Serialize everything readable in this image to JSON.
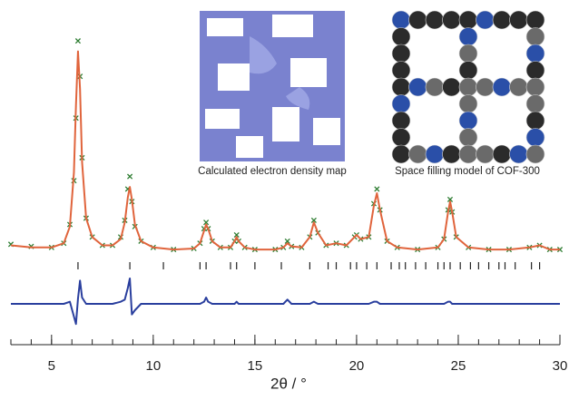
{
  "chart_data": {
    "type": "line",
    "x_label": "2θ / °",
    "insets": [
      "Calculated electron density map",
      "Space filling model of COF-300"
    ],
    "xlim": [
      3,
      30
    ],
    "xticks": [
      5,
      10,
      15,
      20,
      25,
      30
    ],
    "xminorticks": [
      3,
      4,
      5,
      6,
      7,
      8,
      9,
      10,
      11,
      12,
      13,
      14,
      15,
      16,
      17,
      18,
      19,
      20,
      21,
      22,
      23,
      24,
      25,
      26,
      27,
      28,
      29,
      30
    ],
    "ylim": [
      0,
      100
    ],
    "y2lim": [
      -30,
      30
    ],
    "x": [
      3,
      4,
      5,
      5.6,
      5.9,
      6.1,
      6.2,
      6.3,
      6.4,
      6.5,
      6.7,
      7,
      7.5,
      8,
      8.4,
      8.6,
      8.75,
      8.85,
      8.95,
      9.1,
      9.4,
      10,
      11,
      12,
      12.3,
      12.5,
      12.6,
      12.7,
      12.9,
      13.3,
      13.8,
      14,
      14.1,
      14.2,
      14.5,
      15,
      16,
      16.4,
      16.6,
      16.8,
      17.3,
      17.7,
      17.9,
      18.1,
      18.5,
      19,
      19.5,
      19.9,
      20,
      20.2,
      20.6,
      20.85,
      21,
      21.15,
      21.5,
      22,
      23,
      24,
      24.3,
      24.5,
      24.6,
      24.7,
      24.9,
      25.5,
      26.5,
      27.5,
      28.5,
      29,
      29.5,
      30
    ],
    "series": [
      {
        "kind": "marker",
        "color": "#2e7d32",
        "values": [
          5.5,
          4.5,
          4,
          6,
          15,
          36,
          66,
          103,
          86,
          47,
          18,
          9,
          5,
          5,
          9,
          17,
          32,
          38,
          26,
          14,
          7,
          4,
          3,
          3.5,
          6,
          13,
          16,
          13,
          7,
          4,
          4,
          7,
          10,
          7,
          4,
          3,
          3,
          4,
          7,
          4.5,
          4,
          9,
          17,
          11,
          5,
          6,
          5,
          9,
          10,
          8,
          9,
          25,
          32,
          22,
          7,
          4,
          3,
          4,
          8,
          22,
          27,
          21,
          9,
          4,
          3,
          3,
          4,
          5,
          3,
          3
        ]
      },
      {
        "kind": "line",
        "color": "#e0643c",
        "values": [
          5,
          4,
          4,
          6,
          14,
          40,
          72,
          98,
          80,
          45,
          18,
          9,
          5,
          5,
          8,
          16,
          28,
          33,
          27,
          15,
          7,
          4,
          3,
          3.5,
          6,
          12,
          15,
          13,
          7,
          4,
          4,
          7,
          9,
          7,
          4,
          3,
          3,
          4,
          6,
          4.5,
          4,
          9,
          16,
          11,
          5,
          6,
          5,
          9,
          10,
          8,
          9,
          24,
          30,
          22,
          7,
          4,
          3,
          4,
          8,
          21,
          26,
          21,
          9,
          4,
          3,
          3,
          4,
          5,
          3,
          3
        ]
      },
      {
        "kind": "line",
        "color": "#2a3f9e",
        "axis": "y2",
        "values": [
          0,
          0,
          0,
          0,
          2,
          -12,
          -19,
          5,
          22,
          6,
          0,
          0,
          0,
          0,
          2,
          4,
          15,
          24,
          -10,
          -6,
          0,
          0,
          0,
          0,
          0,
          2,
          6,
          2,
          0,
          0,
          0,
          0,
          2,
          0,
          0,
          0,
          0,
          0,
          4,
          0,
          0,
          0,
          2,
          0,
          0,
          0,
          0,
          0,
          0,
          0,
          0,
          2,
          2,
          0,
          0,
          0,
          0,
          0,
          0,
          2,
          2,
          0,
          0,
          0,
          0,
          0,
          0,
          0,
          0,
          0
        ]
      }
    ],
    "reflections": [
      6.3,
      8.85,
      10.5,
      12.3,
      12.6,
      13.8,
      14.1,
      15,
      16.3,
      17.7,
      18.6,
      19,
      19.7,
      20,
      20.5,
      21,
      21.7,
      22.1,
      22.4,
      22.9,
      23.4,
      24,
      24.3,
      24.6,
      25.1,
      25.6,
      26,
      26.5,
      27,
      27.3,
      27.8,
      28.6,
      29
    ],
    "reflection_color": "#222222"
  }
}
